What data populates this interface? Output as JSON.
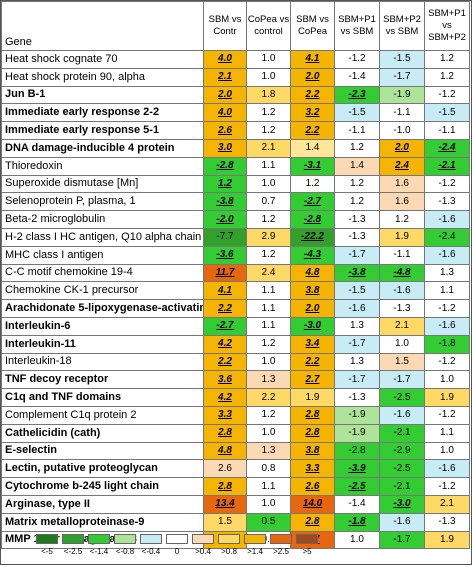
{
  "header": {
    "gene": "Gene",
    "columns": [
      "SBM vs Contr",
      "CoPea vs control",
      "SBM vs CoPea",
      "SBM+P1 vs SBM",
      "SBM+P2 vs SBM",
      "SBM+P1 vs SBM+P2"
    ]
  },
  "rows": [
    {
      "gene": "Heat shock cognate 70",
      "bold": false,
      "values": [
        "4.0",
        "1.0",
        "4.1",
        "-1.2",
        "-1.5",
        "1.2"
      ],
      "colors": [
        "#f5b400",
        "#ffffff",
        "#f5b400",
        "#ffffff",
        "#c7ecf5",
        "#ffffff"
      ],
      "emph": [
        true,
        false,
        true,
        false,
        false,
        false
      ]
    },
    {
      "gene": "Heat shock protein 90, alpha",
      "bold": false,
      "values": [
        "2.1",
        "1.0",
        "2.0",
        "-1.4",
        "-1.7",
        "1.2"
      ],
      "colors": [
        "#f5b400",
        "#ffffff",
        "#f5b400",
        "#ffffff",
        "#c7ecf5",
        "#ffffff"
      ],
      "emph": [
        true,
        false,
        true,
        false,
        false,
        false
      ]
    },
    {
      "gene": "Jun B-1",
      "bold": true,
      "values": [
        "2.0",
        "1.8",
        "2.2",
        "-2.3",
        "-1.9",
        "-1.2"
      ],
      "colors": [
        "#f5b400",
        "#ffd966",
        "#f5b400",
        "#33cc33",
        "#aee39a",
        "#ffffff"
      ],
      "emph": [
        true,
        false,
        true,
        true,
        false,
        false
      ]
    },
    {
      "gene": "Immediate early response 2-2",
      "bold": true,
      "values": [
        "4.0",
        "1.2",
        "3.2",
        "-1.5",
        "-1.1",
        "-1.5"
      ],
      "colors": [
        "#f5b400",
        "#ffffff",
        "#f5b400",
        "#c7ecf5",
        "#ffffff",
        "#c7ecf5"
      ],
      "emph": [
        true,
        false,
        true,
        false,
        false,
        false
      ]
    },
    {
      "gene": "Immediate early response 5-1",
      "bold": true,
      "values": [
        "2.6",
        "1.2",
        "2.2",
        "-1.1",
        "-1.0",
        "-1.1"
      ],
      "colors": [
        "#f5b400",
        "#ffffff",
        "#f5b400",
        "#ffffff",
        "#ffffff",
        "#ffffff"
      ],
      "emph": [
        true,
        false,
        true,
        false,
        false,
        false
      ]
    },
    {
      "gene": "DNA damage-inducible 4 protein",
      "bold": true,
      "values": [
        "3.0",
        "2.1",
        "1.4",
        "1.2",
        "2.0",
        "-2.4"
      ],
      "colors": [
        "#f5b400",
        "#ffd966",
        "#ffe699",
        "#ffffff",
        "#f5b400",
        "#33cc33"
      ],
      "emph": [
        true,
        false,
        false,
        false,
        true,
        true
      ]
    },
    {
      "gene": "Thioredoxin",
      "bold": false,
      "values": [
        "-2.8",
        "1.1",
        "-3.1",
        "1.4",
        "2.4",
        "-2.1"
      ],
      "colors": [
        "#33cc33",
        "#ffffff",
        "#33cc33",
        "#fbd9b5",
        "#f5b400",
        "#33cc33"
      ],
      "emph": [
        true,
        false,
        true,
        false,
        true,
        true
      ]
    },
    {
      "gene": "Superoxide dismutase [Mn]",
      "bold": false,
      "values": [
        "1.2",
        "1.0",
        "1.2",
        "1.2",
        "1.6",
        "-1.2"
      ],
      "colors": [
        "#33cc33",
        "#ffffff",
        "#ffffff",
        "#ffffff",
        "#fbd9b5",
        "#ffffff"
      ],
      "emph": [
        true,
        false,
        false,
        false,
        false,
        false
      ]
    },
    {
      "gene": "Selenoprotein P, plasma, 1",
      "bold": false,
      "values": [
        "-3.8",
        "0.7",
        "-2.7",
        "1.2",
        "1.6",
        "-1.3"
      ],
      "colors": [
        "#33cc33",
        "#ffffff",
        "#33cc33",
        "#ffffff",
        "#fbd9b5",
        "#ffffff"
      ],
      "emph": [
        true,
        false,
        true,
        false,
        false,
        false
      ]
    },
    {
      "gene": "Beta-2 microglobulin",
      "bold": false,
      "values": [
        "-2.0",
        "1.2",
        "-2.8",
        "-1.3",
        "1.2",
        "-1.6"
      ],
      "colors": [
        "#33cc33",
        "#ffffff",
        "#33cc33",
        "#ffffff",
        "#ffffff",
        "#c7ecf5"
      ],
      "emph": [
        true,
        false,
        true,
        false,
        false,
        false
      ]
    },
    {
      "gene": "H-2 class I HC antigen, Q10 alpha chain",
      "bold": false,
      "values": [
        "-7.7",
        "2.9",
        "-22.2",
        "-1.3",
        "1.9",
        "-2.4"
      ],
      "colors": [
        "#33a02c",
        "#ffd966",
        "#33a02c",
        "#ffffff",
        "#ffd966",
        "#33cc33"
      ],
      "emph": [
        false,
        false,
        true,
        false,
        false,
        false
      ]
    },
    {
      "gene": "MHC class I antigen",
      "bold": false,
      "values": [
        "-3.6",
        "1.2",
        "-4.3",
        "-1.7",
        "-1.1",
        "-1.6"
      ],
      "colors": [
        "#33cc33",
        "#ffffff",
        "#33cc33",
        "#c7ecf5",
        "#ffffff",
        "#c7ecf5"
      ],
      "emph": [
        true,
        false,
        true,
        false,
        false,
        false
      ]
    },
    {
      "gene": "C-C motif chemokine 19-4",
      "bold": false,
      "values": [
        "11.7",
        "2.4",
        "4.8",
        "-3.8",
        "-4.8",
        "1.3"
      ],
      "colors": [
        "#e8670e",
        "#ffd966",
        "#f5b400",
        "#33cc33",
        "#33cc33",
        "#ffffff"
      ],
      "emph": [
        true,
        false,
        true,
        true,
        true,
        false
      ]
    },
    {
      "gene": "Chemokine CK-1 precursor",
      "bold": false,
      "values": [
        "4.1",
        "1.1",
        "3.8",
        "-1.5",
        "-1.6",
        "1.1"
      ],
      "colors": [
        "#f5b400",
        "#ffffff",
        "#f5b400",
        "#c7ecf5",
        "#c7ecf5",
        "#ffffff"
      ],
      "emph": [
        true,
        false,
        true,
        false,
        false,
        false
      ]
    },
    {
      "gene": "Arachidonate 5-lipoxygenase-activating",
      "bold": true,
      "values": [
        "2.2",
        "1.1",
        "2.0",
        "-1.6",
        "-1.3",
        "-1.2"
      ],
      "colors": [
        "#f5b400",
        "#ffffff",
        "#f5b400",
        "#c7ecf5",
        "#ffffff",
        "#ffffff"
      ],
      "emph": [
        true,
        false,
        true,
        false,
        false,
        false
      ]
    },
    {
      "gene": "Interleukin-6",
      "bold": true,
      "values": [
        "-2.7",
        "1.1",
        "-3.0",
        "1.3",
        "2.1",
        "-1.6"
      ],
      "colors": [
        "#33cc33",
        "#ffffff",
        "#33cc33",
        "#ffffff",
        "#ffd966",
        "#c7ecf5"
      ],
      "emph": [
        true,
        false,
        true,
        false,
        false,
        false
      ]
    },
    {
      "gene": "Interleukin-11",
      "bold": true,
      "values": [
        "4.2",
        "1.2",
        "3.4",
        "-1.7",
        "1.0",
        "-1.8"
      ],
      "colors": [
        "#f5b400",
        "#ffffff",
        "#f5b400",
        "#c7ecf5",
        "#ffffff",
        "#33cc33"
      ],
      "emph": [
        true,
        false,
        true,
        false,
        false,
        false
      ]
    },
    {
      "gene": "Interleukin-18",
      "bold": false,
      "values": [
        "2.2",
        "1.0",
        "2.2",
        "1.3",
        "1.5",
        "-1.2"
      ],
      "colors": [
        "#f5b400",
        "#ffffff",
        "#f5b400",
        "#ffffff",
        "#fbd9b5",
        "#ffffff"
      ],
      "emph": [
        true,
        false,
        true,
        false,
        false,
        false
      ]
    },
    {
      "gene": "TNF decoy receptor",
      "bold": true,
      "values": [
        "3.6",
        "1.3",
        "2.7",
        "-1.7",
        "-1.7",
        "1.0"
      ],
      "colors": [
        "#f5b400",
        "#fbd9b5",
        "#f5b400",
        "#c7ecf5",
        "#c7ecf5",
        "#ffffff"
      ],
      "emph": [
        true,
        false,
        true,
        false,
        false,
        false
      ]
    },
    {
      "gene": "C1q and TNF domains",
      "bold": true,
      "values": [
        "4.2",
        "2.2",
        "1.9",
        "-1.3",
        "-2.5",
        "1.9"
      ],
      "colors": [
        "#f5b400",
        "#ffd966",
        "#ffd966",
        "#ffffff",
        "#33cc33",
        "#ffd966"
      ],
      "emph": [
        true,
        false,
        false,
        false,
        false,
        false
      ]
    },
    {
      "gene": "Complement C1q protein 2",
      "bold": false,
      "values": [
        "3.3",
        "1.2",
        "2.8",
        "-1.9",
        "-1.6",
        "-1.2"
      ],
      "colors": [
        "#f5b400",
        "#ffffff",
        "#f5b400",
        "#aee39a",
        "#c7ecf5",
        "#ffffff"
      ],
      "emph": [
        true,
        false,
        true,
        false,
        false,
        false
      ]
    },
    {
      "gene": "Cathelicidin (cath)",
      "bold": true,
      "values": [
        "2.8",
        "1.0",
        "2.8",
        "-1.9",
        "-2.1",
        "1.1"
      ],
      "colors": [
        "#f5b400",
        "#ffffff",
        "#f5b400",
        "#aee39a",
        "#33cc33",
        "#ffffff"
      ],
      "emph": [
        true,
        false,
        true,
        false,
        false,
        false
      ]
    },
    {
      "gene": "E-selectin",
      "bold": true,
      "values": [
        "4.8",
        "1.3",
        "3.8",
        "-2.8",
        "-2.9",
        "1.0"
      ],
      "colors": [
        "#f5b400",
        "#fbd9b5",
        "#f5b400",
        "#33cc33",
        "#33cc33",
        "#ffffff"
      ],
      "emph": [
        true,
        false,
        true,
        false,
        false,
        false
      ]
    },
    {
      "gene": "Lectin, putative proteoglycan",
      "bold": true,
      "values": [
        "2.6",
        "0.8",
        "3.3",
        "-3.9",
        "-2.5",
        "-1.6"
      ],
      "colors": [
        "#fbd9b5",
        "#ffffff",
        "#f5b400",
        "#33cc33",
        "#33cc33",
        "#c7ecf5"
      ],
      "emph": [
        false,
        false,
        true,
        true,
        false,
        false
      ]
    },
    {
      "gene": "Cytochrome b-245 light chain",
      "bold": true,
      "values": [
        "2.8",
        "1.1",
        "2.6",
        "-2.5",
        "-2.1",
        "-1.2"
      ],
      "colors": [
        "#f5b400",
        "#ffffff",
        "#f5b400",
        "#33cc33",
        "#33cc33",
        "#ffffff"
      ],
      "emph": [
        true,
        false,
        true,
        true,
        false,
        false
      ]
    },
    {
      "gene": "Arginase, type II",
      "bold": true,
      "values": [
        "13.4",
        "1.0",
        "14.0",
        "-1.4",
        "-3.0",
        "2.1"
      ],
      "colors": [
        "#e8670e",
        "#ffffff",
        "#e8670e",
        "#ffffff",
        "#33cc33",
        "#ffd966"
      ],
      "emph": [
        true,
        false,
        true,
        false,
        true,
        false
      ]
    },
    {
      "gene": "Matrix metalloproteinase-9",
      "bold": true,
      "values": [
        "1.5",
        "0.5",
        "2.8",
        "-1.8",
        "-1.6",
        "-1.3"
      ],
      "colors": [
        "#ffd966",
        "#33cc33",
        "#f5b400",
        "#33cc33",
        "#c7ecf5",
        "#ffffff"
      ],
      "emph": [
        false,
        false,
        true,
        true,
        false,
        false
      ]
    },
    {
      "gene": "MMP 13 or Collagenase 3",
      "bold": true,
      "values": [
        "2.5",
        "0.9",
        "5.7",
        "1.0",
        "-1.7",
        "1.9"
      ],
      "colors": [
        "#f5b400",
        "#ffffff",
        "#e8670e",
        "#ffffff",
        "#33cc33",
        "#ffd966"
      ],
      "emph": [
        true,
        false,
        true,
        false,
        false,
        false
      ]
    }
  ],
  "legend": [
    {
      "label": "<-5",
      "color": "#1f7a1f"
    },
    {
      "label": "<-2.5",
      "color": "#2ea02e"
    },
    {
      "label": "<-1.4",
      "color": "#33cc33"
    },
    {
      "label": "<-0.8",
      "color": "#aee39a"
    },
    {
      "label": "<-0.4",
      "color": "#c7ecf5"
    },
    {
      "label": "0",
      "color": "#ffffff"
    },
    {
      "label": ">0.4",
      "color": "#fbd9b5"
    },
    {
      "label": ">0.8",
      "color": "#ffd966"
    },
    {
      "label": ">1.4",
      "color": "#f5b400"
    },
    {
      "label": ">2.5",
      "color": "#e8670e"
    },
    {
      "label": ">5",
      "color": "#9e4a1c"
    }
  ]
}
